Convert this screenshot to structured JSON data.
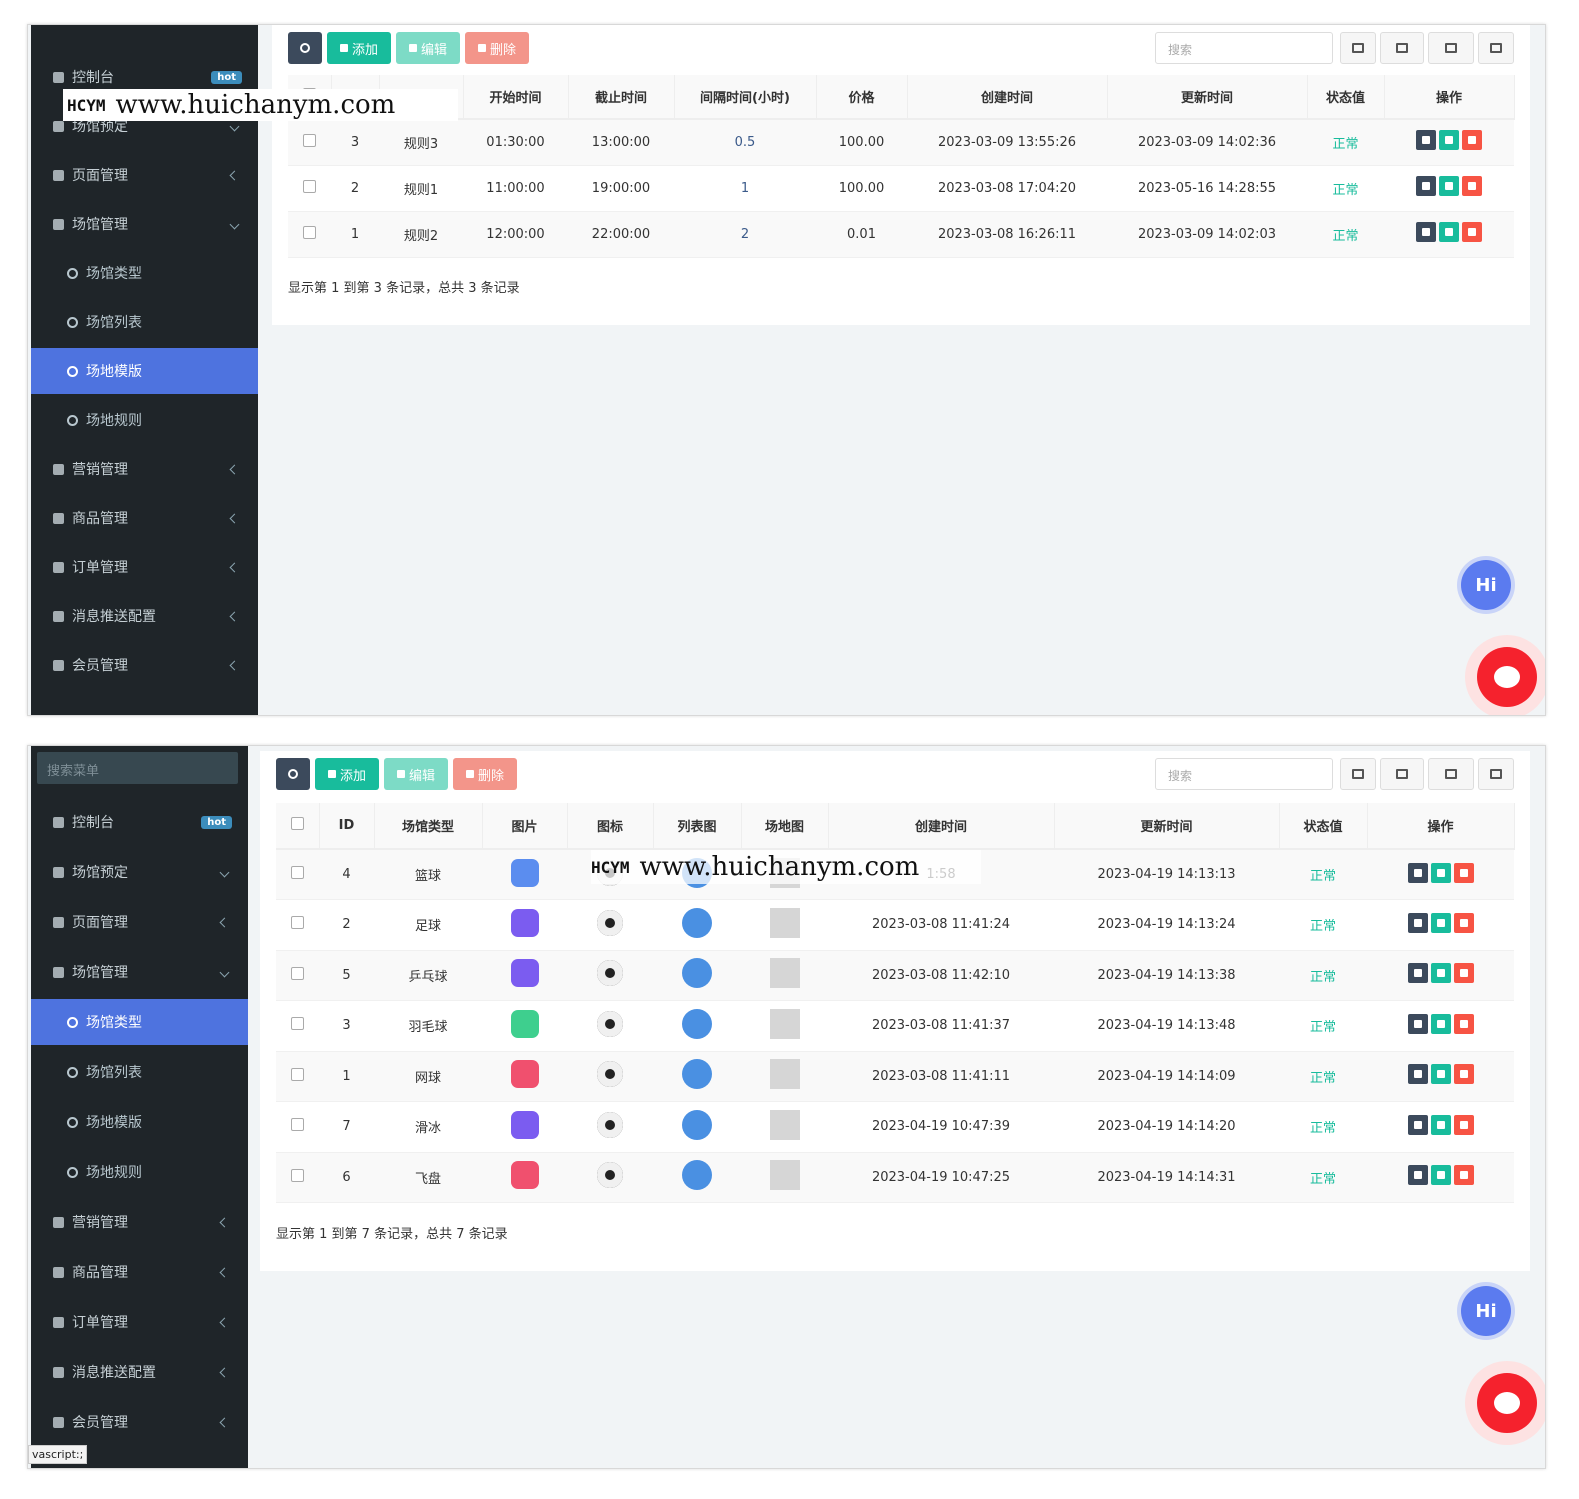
{
  "watermark": {
    "logo": "HCYM",
    "url": "www.huichanym.com"
  },
  "panels": [
    {
      "sidebar": {
        "items": [
          {
            "label": "控制台",
            "badge": "hot",
            "level": 1
          },
          {
            "label": "场馆预定",
            "level": 1,
            "open": true
          },
          {
            "label": "页面管理",
            "level": 1
          },
          {
            "label": "场馆管理",
            "level": 1,
            "open": true
          },
          {
            "label": "场馆类型",
            "level": 2
          },
          {
            "label": "场馆列表",
            "level": 2
          },
          {
            "label": "场地模版",
            "level": 2,
            "active": true
          },
          {
            "label": "场地规则",
            "level": 2
          },
          {
            "label": "营销管理",
            "level": 1
          },
          {
            "label": "商品管理",
            "level": 1
          },
          {
            "label": "订单管理",
            "level": 1
          },
          {
            "label": "消息推送配置",
            "level": 1
          },
          {
            "label": "会员管理",
            "level": 1
          }
        ]
      },
      "toolbar": {
        "add": "添加",
        "edit": "编辑",
        "delete": "删除",
        "search_placeholder": "搜索"
      },
      "table": {
        "headers": [
          null,
          null,
          null,
          "开始时间",
          "截止时间",
          "间隔时间(小时)",
          "价格",
          "创建时间",
          "更新时间",
          "状态值",
          "操作"
        ],
        "rows": [
          {
            "id": "3",
            "name": "规则3",
            "start": "01:30:00",
            "end": "13:00:00",
            "interval": "0.5",
            "price": "100.00",
            "created": "2023-03-09 13:55:26",
            "updated": "2023-03-09 14:02:36",
            "status": "正常"
          },
          {
            "id": "2",
            "name": "规则1",
            "start": "11:00:00",
            "end": "19:00:00",
            "interval": "1",
            "price": "100.00",
            "created": "2023-03-08 17:04:20",
            "updated": "2023-05-16 14:28:55",
            "status": "正常"
          },
          {
            "id": "1",
            "name": "规则2",
            "start": "12:00:00",
            "end": "22:00:00",
            "interval": "2",
            "price": "0.01",
            "created": "2023-03-08 16:26:11",
            "updated": "2023-03-09 14:02:03",
            "status": "正常"
          }
        ]
      },
      "footer": "显示第 1 到第 3 条记录，总共 3 条记录"
    },
    {
      "sidebar": {
        "search": "搜索菜单",
        "items": [
          {
            "label": "控制台",
            "badge": "hot",
            "level": 1
          },
          {
            "label": "场馆预定",
            "level": 1,
            "open": true
          },
          {
            "label": "页面管理",
            "level": 1
          },
          {
            "label": "场馆管理",
            "level": 1,
            "open": true
          },
          {
            "label": "场馆类型",
            "level": 2,
            "active": true
          },
          {
            "label": "场馆列表",
            "level": 2
          },
          {
            "label": "场地模版",
            "level": 2
          },
          {
            "label": "场地规则",
            "level": 2
          },
          {
            "label": "营销管理",
            "level": 1
          },
          {
            "label": "商品管理",
            "level": 1
          },
          {
            "label": "订单管理",
            "level": 1
          },
          {
            "label": "消息推送配置",
            "level": 1
          },
          {
            "label": "会员管理",
            "level": 1
          }
        ]
      },
      "toolbar": {
        "add": "添加",
        "edit": "编辑",
        "delete": "删除",
        "search_placeholder": "搜索"
      },
      "table": {
        "headers": [
          null,
          "ID",
          "场馆类型",
          "图片",
          "图标",
          "列表图",
          "场地图",
          "创建时间",
          "更新时间",
          "状态值",
          "操作"
        ],
        "rows": [
          {
            "id": "4",
            "type": "篮球",
            "image_color": "#5b8def",
            "created": "1:58",
            "updated": "2023-04-19 14:13:13",
            "status": "正常"
          },
          {
            "id": "2",
            "type": "足球",
            "image_color": "#7b5cf0",
            "created": "2023-03-08 11:41:24",
            "updated": "2023-04-19 14:13:24",
            "status": "正常"
          },
          {
            "id": "5",
            "type": "乒乓球",
            "image_color": "#7b5cf0",
            "created": "2023-03-08 11:42:10",
            "updated": "2023-04-19 14:13:38",
            "status": "正常"
          },
          {
            "id": "3",
            "type": "羽毛球",
            "image_color": "#3ecf8e",
            "created": "2023-03-08 11:41:37",
            "updated": "2023-04-19 14:13:48",
            "status": "正常"
          },
          {
            "id": "1",
            "type": "网球",
            "image_color": "#f0506e",
            "created": "2023-03-08 11:41:11",
            "updated": "2023-04-19 14:14:09",
            "status": "正常"
          },
          {
            "id": "7",
            "type": "滑冰",
            "image_color": "#7b5cf0",
            "created": "2023-04-19 10:47:39",
            "updated": "2023-04-19 14:14:20",
            "status": "正常"
          },
          {
            "id": "6",
            "type": "飞盘",
            "image_color": "#f0506e",
            "created": "2023-04-19 10:47:25",
            "updated": "2023-04-19 14:14:31",
            "status": "正常"
          }
        ]
      },
      "footer": "显示第 1 到第 7 条记录，总共 7 条记录"
    }
  ],
  "chat": {
    "hi": "Hi"
  },
  "status_bar": "vascript:;"
}
